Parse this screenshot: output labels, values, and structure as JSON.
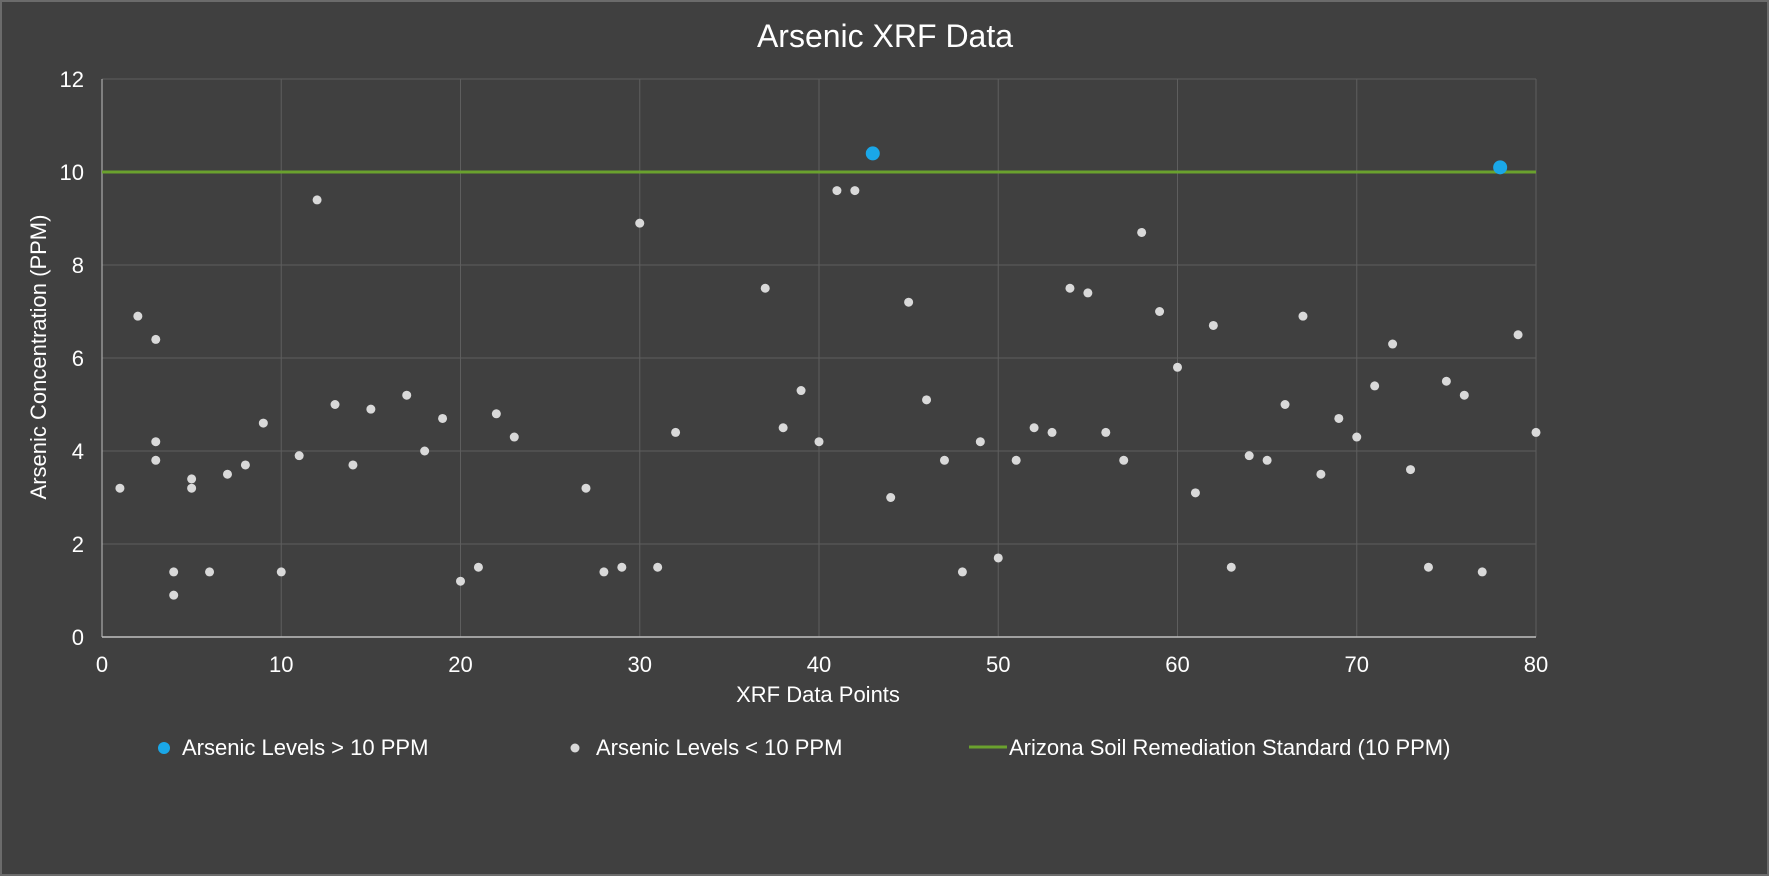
{
  "chart_data": {
    "type": "scatter",
    "title": "Arsenic XRF Data",
    "xlabel": "XRF Data Points",
    "ylabel": "Arsenic Concentration (PPM)",
    "xlim": [
      0,
      80
    ],
    "ylim": [
      0,
      12
    ],
    "xticks": [
      0,
      10,
      20,
      30,
      40,
      50,
      60,
      70,
      80
    ],
    "yticks": [
      0,
      2,
      4,
      6,
      8,
      10,
      12
    ],
    "grid": true,
    "legend_position": "bottom",
    "series": [
      {
        "name": "Arsenic Levels > 10 PPM",
        "color": "#1aa7e8",
        "points": [
          [
            43,
            10.4
          ],
          [
            78,
            10.1
          ]
        ]
      },
      {
        "name": "Arsenic Levels < 10 PPM",
        "color": "#d9d9d9",
        "points": [
          [
            1,
            3.2
          ],
          [
            2,
            6.9
          ],
          [
            3,
            6.4
          ],
          [
            3,
            4.2
          ],
          [
            3,
            3.8
          ],
          [
            4,
            1.4
          ],
          [
            4,
            0.9
          ],
          [
            5,
            3.4
          ],
          [
            5,
            3.2
          ],
          [
            6,
            1.4
          ],
          [
            7,
            3.5
          ],
          [
            8,
            3.7
          ],
          [
            9,
            4.6
          ],
          [
            10,
            1.4
          ],
          [
            11,
            3.9
          ],
          [
            12,
            9.4
          ],
          [
            13,
            5.0
          ],
          [
            14,
            3.7
          ],
          [
            15,
            4.9
          ],
          [
            17,
            5.2
          ],
          [
            18,
            4.0
          ],
          [
            19,
            4.7
          ],
          [
            20,
            1.2
          ],
          [
            21,
            1.5
          ],
          [
            22,
            4.8
          ],
          [
            23,
            4.3
          ],
          [
            27,
            3.2
          ],
          [
            28,
            1.4
          ],
          [
            29,
            1.5
          ],
          [
            30,
            8.9
          ],
          [
            31,
            1.5
          ],
          [
            32,
            4.4
          ],
          [
            37,
            7.5
          ],
          [
            38,
            4.5
          ],
          [
            39,
            5.3
          ],
          [
            40,
            4.2
          ],
          [
            41,
            9.6
          ],
          [
            42,
            9.6
          ],
          [
            44,
            3.0
          ],
          [
            45,
            7.2
          ],
          [
            46,
            5.1
          ],
          [
            47,
            3.8
          ],
          [
            48,
            1.4
          ],
          [
            49,
            4.2
          ],
          [
            50,
            1.7
          ],
          [
            51,
            3.8
          ],
          [
            52,
            4.5
          ],
          [
            53,
            4.4
          ],
          [
            54,
            7.5
          ],
          [
            55,
            7.4
          ],
          [
            56,
            4.4
          ],
          [
            57,
            3.8
          ],
          [
            58,
            8.7
          ],
          [
            59,
            7.0
          ],
          [
            60,
            5.8
          ],
          [
            61,
            3.1
          ],
          [
            62,
            6.7
          ],
          [
            63,
            1.5
          ],
          [
            64,
            3.9
          ],
          [
            65,
            3.8
          ],
          [
            66,
            5.0
          ],
          [
            67,
            6.9
          ],
          [
            68,
            3.5
          ],
          [
            69,
            4.7
          ],
          [
            70,
            4.3
          ],
          [
            71,
            5.4
          ],
          [
            72,
            6.3
          ],
          [
            73,
            3.6
          ],
          [
            74,
            1.5
          ],
          [
            75,
            5.5
          ],
          [
            76,
            5.2
          ],
          [
            77,
            1.4
          ],
          [
            79,
            6.5
          ],
          [
            80,
            4.4
          ]
        ]
      }
    ],
    "reference_line": {
      "name": "Arizona Soil Remediation Standard (10 PPM)",
      "color": "#6aa12e",
      "y": 10
    }
  }
}
